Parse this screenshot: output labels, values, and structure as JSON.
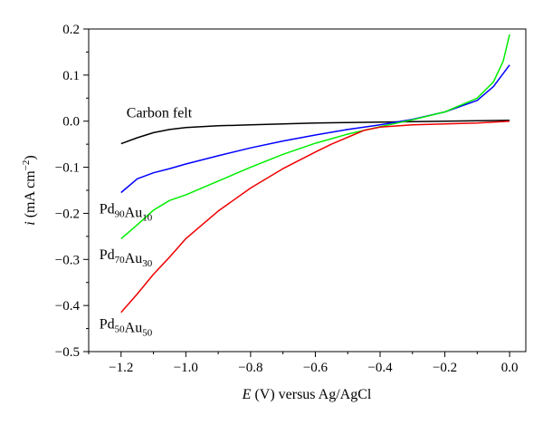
{
  "chart_data": {
    "type": "line",
    "title": "",
    "xlabel": {
      "italic": "E",
      "rest": " (V) versus Ag/AgCl"
    },
    "ylabel": {
      "italic": "i",
      "rest": " (mA cm",
      "sup": "−2",
      "close": ")"
    },
    "xlim": [
      -1.3,
      0.05
    ],
    "ylim": [
      -0.5,
      0.2
    ],
    "xticks": [
      -1.2,
      -1.0,
      -0.8,
      -0.6,
      -0.4,
      -0.2,
      0.0
    ],
    "xtick_labels": [
      "−1.2",
      "−1.0",
      "−0.8",
      "−0.6",
      "−0.4",
      "−0.2",
      "0.0"
    ],
    "yticks": [
      -0.5,
      -0.4,
      -0.3,
      -0.2,
      -0.1,
      0.0,
      0.1,
      0.2
    ],
    "ytick_labels": [
      "−0.5",
      "−0.4",
      "−0.3",
      "−0.2",
      "−0.1",
      "0.0",
      "0.1",
      "0.2"
    ],
    "grid": false,
    "legend": "none",
    "series": [
      {
        "name": "Carbon felt",
        "color": "#000000",
        "x": [
          -1.2,
          -1.15,
          -1.1,
          -1.05,
          -1.0,
          -0.9,
          -0.8,
          -0.7,
          -0.6,
          -0.5,
          -0.4,
          -0.3,
          -0.2,
          -0.1,
          0.0
        ],
        "y": [
          -0.049,
          -0.036,
          -0.025,
          -0.018,
          -0.014,
          -0.01,
          -0.008,
          -0.006,
          -0.004,
          -0.003,
          -0.002,
          -0.001,
          0.0,
          0.001,
          0.002
        ]
      },
      {
        "name": "Pd90Au10",
        "color": "#0000ff",
        "x": [
          -1.2,
          -1.15,
          -1.1,
          -1.05,
          -1.0,
          -0.9,
          -0.8,
          -0.7,
          -0.6,
          -0.5,
          -0.4,
          -0.3,
          -0.2,
          -0.1,
          -0.05,
          0.0
        ],
        "y": [
          -0.155,
          -0.125,
          -0.112,
          -0.103,
          -0.093,
          -0.075,
          -0.058,
          -0.043,
          -0.03,
          -0.018,
          -0.008,
          0.004,
          0.02,
          0.045,
          0.075,
          0.122
        ]
      },
      {
        "name": "Pd70Au30",
        "color": "#00ee00",
        "x": [
          -1.2,
          -1.15,
          -1.1,
          -1.05,
          -1.0,
          -0.9,
          -0.8,
          -0.7,
          -0.6,
          -0.5,
          -0.4,
          -0.3,
          -0.2,
          -0.1,
          -0.05,
          -0.02,
          0.0
        ],
        "y": [
          -0.255,
          -0.225,
          -0.193,
          -0.172,
          -0.16,
          -0.13,
          -0.1,
          -0.072,
          -0.048,
          -0.028,
          -0.012,
          0.003,
          0.02,
          0.05,
          0.085,
          0.13,
          0.188
        ]
      },
      {
        "name": "Pd50Au50",
        "color": "#ee0000",
        "x": [
          -1.2,
          -1.15,
          -1.1,
          -1.05,
          -1.0,
          -0.9,
          -0.8,
          -0.7,
          -0.6,
          -0.55,
          -0.5,
          -0.45,
          -0.4,
          -0.3,
          -0.2,
          -0.1,
          -0.05,
          0.0
        ],
        "y": [
          -0.415,
          -0.375,
          -0.332,
          -0.295,
          -0.255,
          -0.195,
          -0.145,
          -0.103,
          -0.067,
          -0.05,
          -0.035,
          -0.02,
          -0.013,
          -0.008,
          -0.006,
          -0.004,
          -0.002,
          0.0
        ]
      }
    ],
    "annotations": [
      {
        "text": "Carbon felt",
        "x": -1.2,
        "y": 0.0
      },
      {
        "parts": [
          {
            "t": "Pd"
          },
          {
            "t": "90",
            "sub": true
          },
          {
            "t": "Au"
          },
          {
            "t": "10",
            "sub": true
          }
        ],
        "x": -1.2,
        "y": -0.19
      },
      {
        "parts": [
          {
            "t": "Pd"
          },
          {
            "t": "70",
            "sub": true
          },
          {
            "t": "Au"
          },
          {
            "t": "30",
            "sub": true
          }
        ],
        "x": -1.2,
        "y": -0.29
      },
      {
        "parts": [
          {
            "t": "Pd"
          },
          {
            "t": "50",
            "sub": true
          },
          {
            "t": "Au"
          },
          {
            "t": "50",
            "sub": true
          }
        ],
        "x": -1.2,
        "y": -0.44
      }
    ]
  }
}
